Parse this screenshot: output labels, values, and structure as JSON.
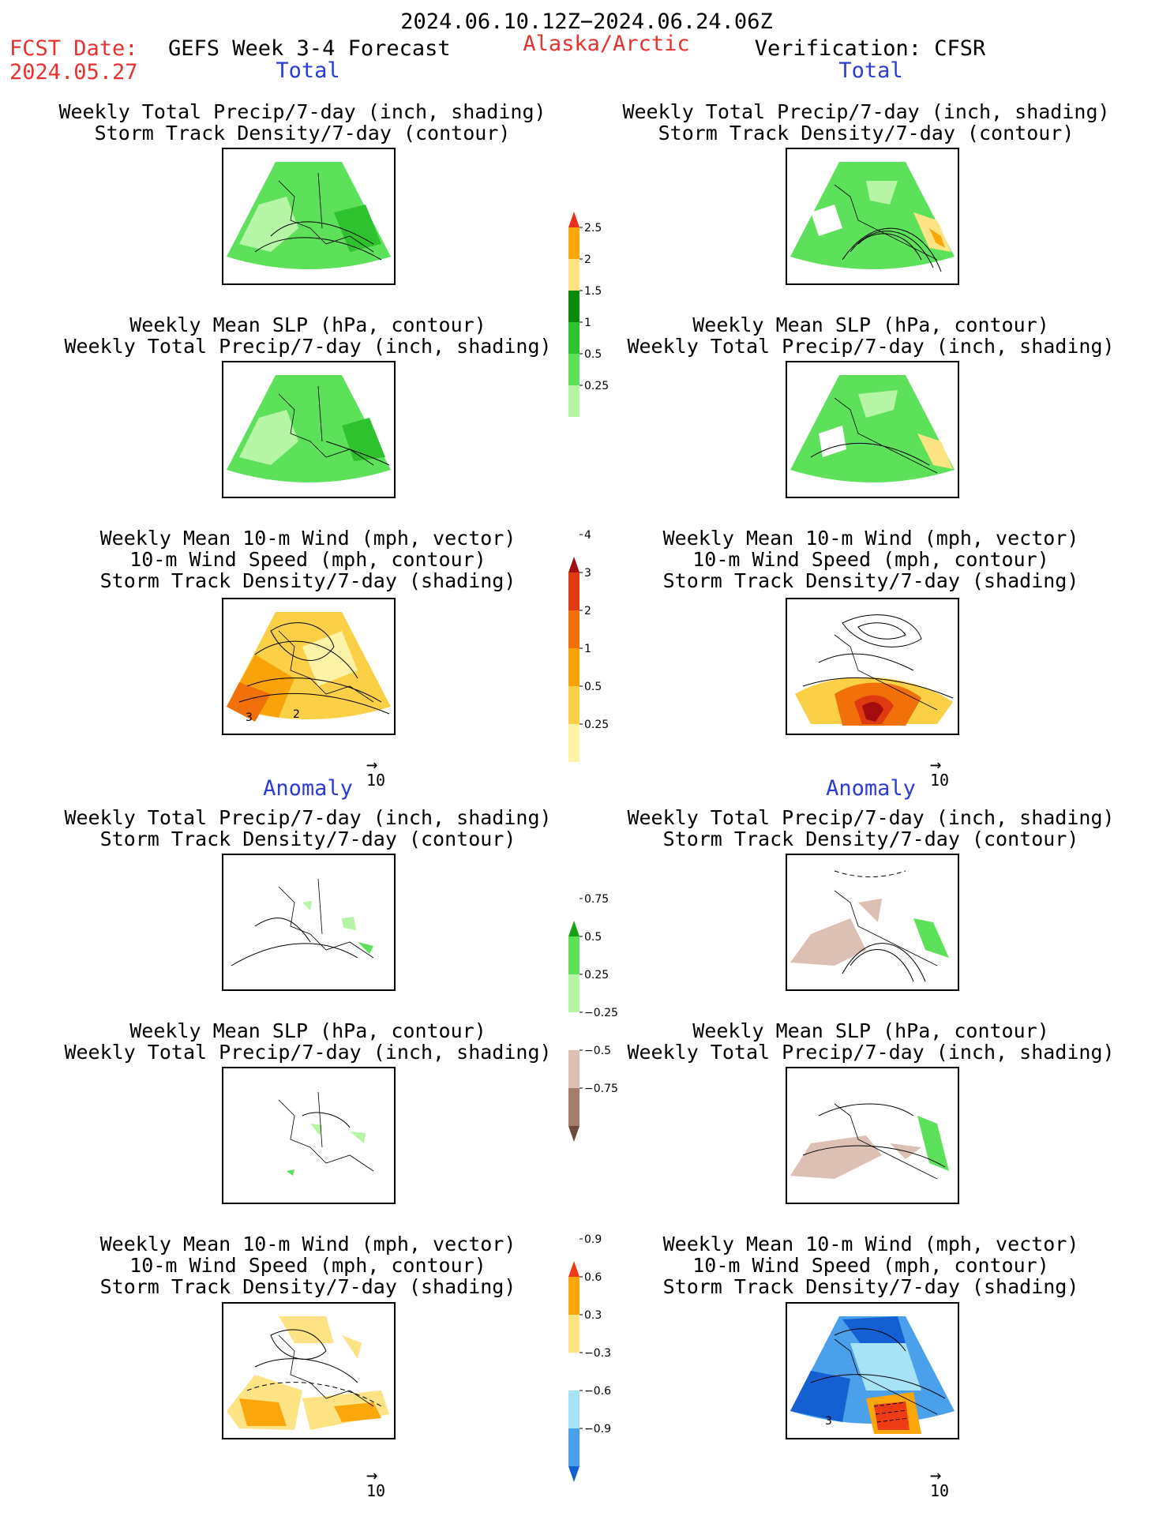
{
  "header": {
    "date_range": "2024.06.10.12Z−2024.06.24.06Z",
    "fcst_label": "FCST Date:",
    "fcst_date": "2024.05.27",
    "forecast_name": "GEFS Week 3-4 Forecast",
    "region": "Alaska/Arctic",
    "verification": "Verification: CFSR"
  },
  "sections": {
    "total": "Total",
    "anomaly": "Anomaly"
  },
  "titles": {
    "precip_storm": [
      "Weekly Total Precip/7-day (inch, shading)",
      "Storm Track Density/7-day (contour)"
    ],
    "slp_precip": [
      "Weekly Mean SLP (hPa, contour)",
      "Weekly Total Precip/7-day (inch, shading)"
    ],
    "wind_storm": [
      "Weekly Mean 10-m Wind (mph, vector)",
      "10-m Wind Speed (mph, contour)",
      "Storm Track Density/7-day (shading)"
    ]
  },
  "vector_scale": {
    "arrow": "→",
    "value": "10"
  },
  "colorbars": [
    {
      "name": "precip-total",
      "colors": [
        "#ffffff",
        "#b6f5a6",
        "#5de05a",
        "#2ec22e",
        "#0a8a0a",
        "#fde383",
        "#fba60a",
        "#e8321e"
      ],
      "ticks": [
        "0.25",
        "0.5",
        "1",
        "1.5",
        "2",
        "2.5"
      ]
    },
    {
      "name": "storm-total",
      "colors": [
        "#ffffff",
        "#fdf3a6",
        "#fbd046",
        "#f9a30a",
        "#f2700a",
        "#e03a10",
        "#a30d0d"
      ],
      "ticks": [
        "0.25",
        "0.5",
        "1",
        "2",
        "3",
        "4"
      ]
    },
    {
      "name": "precip-anomaly",
      "colors": [
        "#6e4a3c",
        "#a57d6c",
        "#dcc0b4",
        "#ffffff",
        "#b6f5a6",
        "#5de05a",
        "#13a313"
      ],
      "ticks": [
        "−0.75",
        "−0.5",
        "−0.25",
        "0.25",
        "0.5",
        "0.75"
      ]
    },
    {
      "name": "storm-anomaly",
      "colors": [
        "#1460d2",
        "#4aa0ea",
        "#a6e3f7",
        "#ffffff",
        "#fde383",
        "#fba60a",
        "#f03c14"
      ],
      "ticks": [
        "−0.9",
        "−0.6",
        "−0.3",
        "0.3",
        "0.6",
        "0.9"
      ]
    }
  ],
  "contour_labels": {
    "storm_total_left": [
      "3",
      "2"
    ],
    "anomaly_right": "3"
  }
}
